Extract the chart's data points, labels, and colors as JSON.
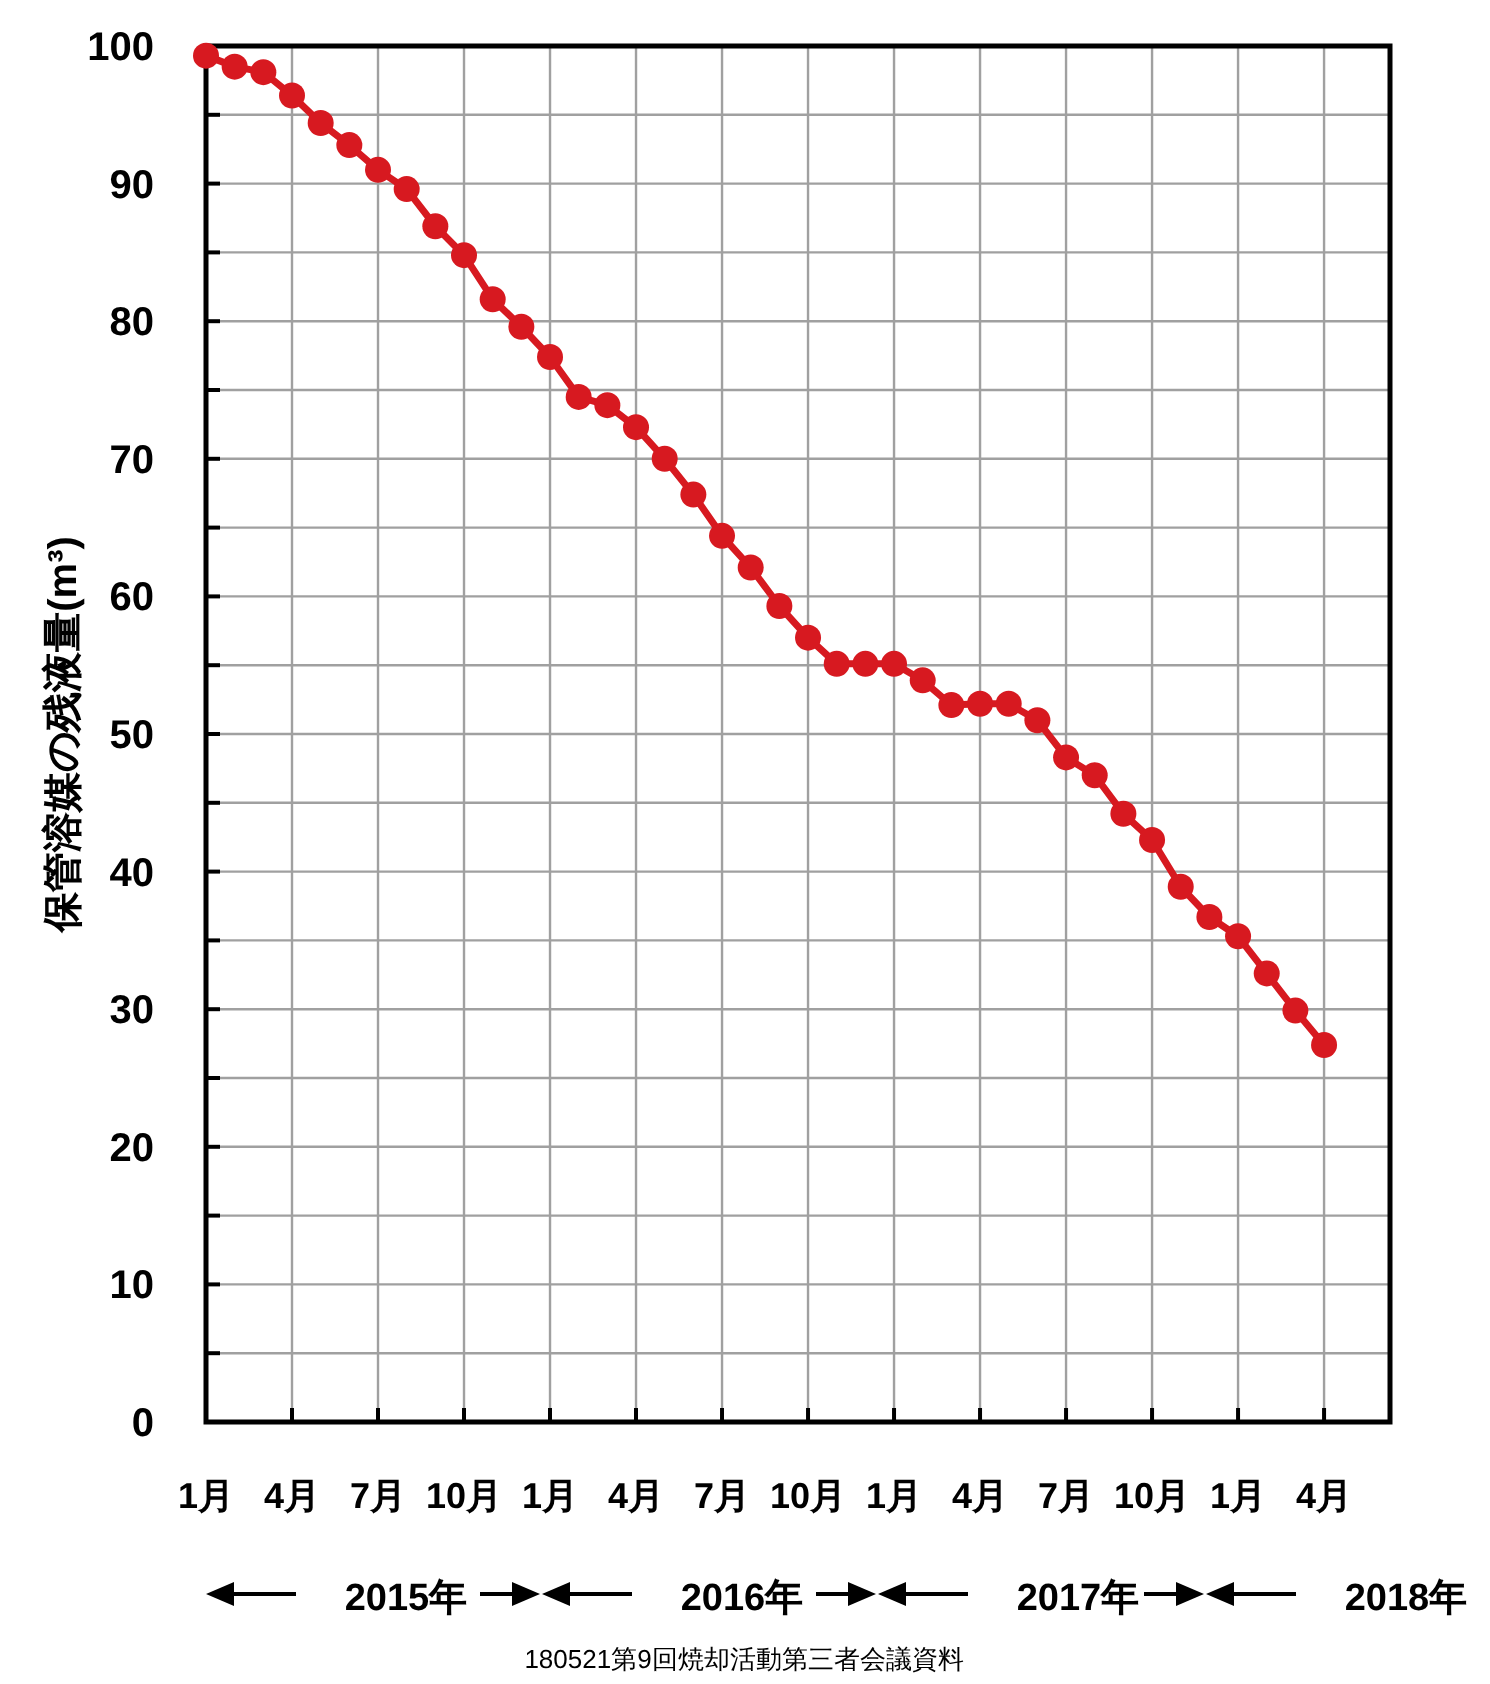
{
  "chart_data": {
    "type": "line",
    "ylabel": "保管溶媒の残液量(m³)",
    "x": [
      "2015-01",
      "2015-02",
      "2015-03",
      "2015-04",
      "2015-05",
      "2015-06",
      "2015-07",
      "2015-08",
      "2015-09",
      "2015-10",
      "2015-11",
      "2015-12",
      "2016-01",
      "2016-02",
      "2016-03",
      "2016-04",
      "2016-05",
      "2016-06",
      "2016-07",
      "2016-08",
      "2016-09",
      "2016-10",
      "2016-11",
      "2016-12",
      "2017-01",
      "2017-02",
      "2017-03",
      "2017-04",
      "2017-05",
      "2017-06",
      "2017-07",
      "2017-08",
      "2017-09",
      "2017-10",
      "2017-11",
      "2017-12",
      "2018-01",
      "2018-02",
      "2018-03",
      "2018-04"
    ],
    "series": [
      {
        "color": "#d71920",
        "values": [
          99.3,
          98.5,
          98.1,
          96.4,
          94.4,
          92.8,
          91.0,
          89.6,
          86.9,
          84.8,
          81.6,
          79.6,
          77.4,
          74.5,
          73.9,
          72.3,
          70.0,
          67.4,
          64.4,
          62.1,
          59.3,
          57.0,
          55.1,
          55.1,
          55.1,
          53.9,
          52.1,
          52.2,
          52.2,
          51.0,
          48.3,
          47.0,
          44.2,
          42.3,
          38.9,
          36.7,
          35.3,
          32.6,
          29.9,
          27.4
        ]
      }
    ],
    "xlim": [
      "2015-01-01",
      "2018-06-10"
    ],
    "xticks": [
      {
        "value": "2015-01",
        "label": "1月"
      },
      {
        "value": "2015-04",
        "label": "4月"
      },
      {
        "value": "2015-07",
        "label": "7月"
      },
      {
        "value": "2015-10",
        "label": "10月"
      },
      {
        "value": "2016-01",
        "label": "1月"
      },
      {
        "value": "2016-04",
        "label": "4月"
      },
      {
        "value": "2016-07",
        "label": "7月"
      },
      {
        "value": "2016-10",
        "label": "10月"
      },
      {
        "value": "2017-01",
        "label": "1月"
      },
      {
        "value": "2017-04",
        "label": "4月"
      },
      {
        "value": "2017-07",
        "label": "7月"
      },
      {
        "value": "2017-10",
        "label": "10月"
      },
      {
        "value": "2018-01",
        "label": "1月"
      },
      {
        "value": "2018-04",
        "label": "4月"
      }
    ],
    "ylim": [
      0,
      100
    ],
    "yticks": [
      0,
      {
        "value": 5,
        "label": null
      },
      10,
      {
        "value": 15,
        "label": null
      },
      20,
      {
        "value": 25,
        "label": null
      },
      30,
      {
        "value": 35,
        "label": null
      },
      40,
      {
        "value": 45,
        "label": null
      },
      50,
      {
        "value": 55,
        "label": null
      },
      60,
      {
        "value": 65,
        "label": null
      },
      70,
      {
        "value": 75,
        "label": null
      },
      80,
      {
        "value": 85,
        "label": null
      },
      90,
      {
        "value": 95,
        "label": null
      },
      100
    ],
    "grid": true,
    "marker": "circle",
    "line_style": "solid",
    "annotations": [
      "2015年",
      "2016年",
      "2017年",
      "2018年",
      "180521第9回焼却活動第三者会議資料"
    ]
  }
}
